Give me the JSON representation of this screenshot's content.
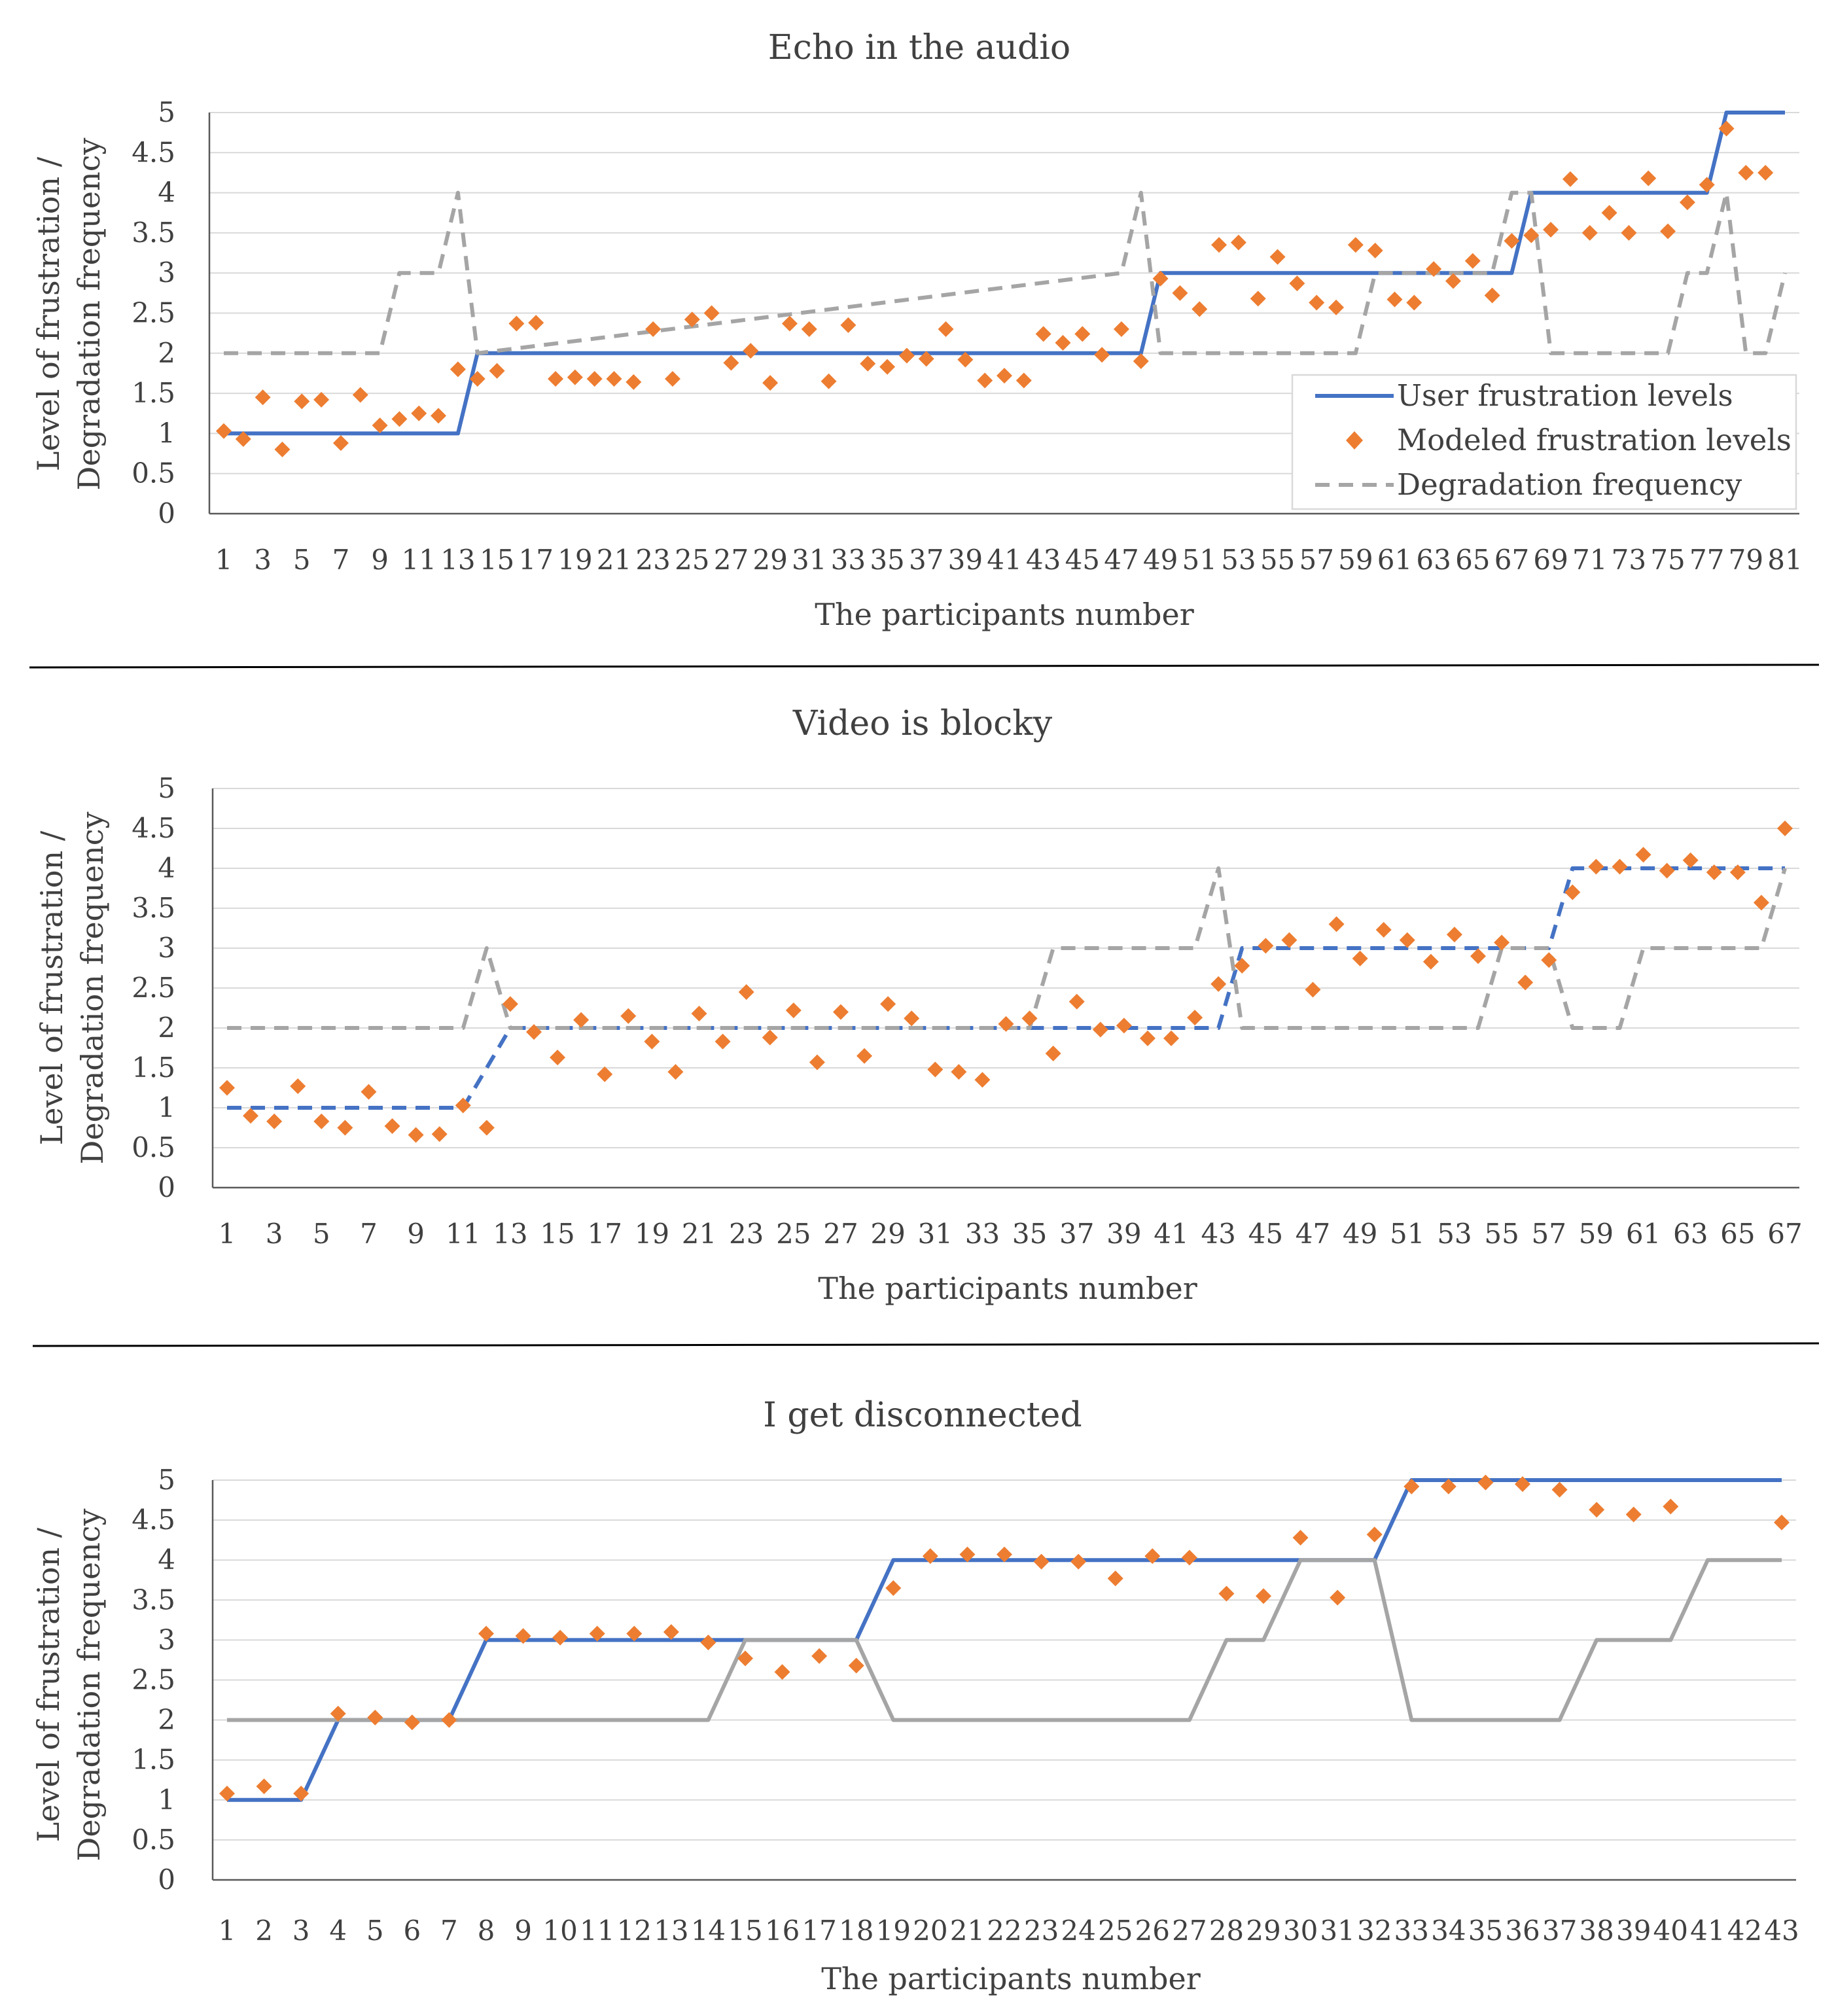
{
  "chart_data": [
    {
      "type": "line",
      "title": "Echo in the audio",
      "xlabel": "The participants number",
      "ylabel_lines": [
        "Level of frustration /",
        "Degradation frequency"
      ],
      "x_tick_labels": [
        "1",
        "3",
        "5",
        "7",
        "9",
        "11",
        "13",
        "15",
        "17",
        "19",
        "21",
        "23",
        "25",
        "27",
        "29",
        "31",
        "33",
        "35",
        "37",
        "39",
        "41",
        "43",
        "45",
        "47",
        "49",
        "51",
        "53",
        "55",
        "57",
        "59",
        "61",
        "63",
        "65",
        "67",
        "69",
        "71",
        "73",
        "75",
        "77",
        "79",
        "81"
      ],
      "y_tick_labels": [
        "0",
        "0.5",
        "1",
        "1.5",
        "2",
        "2.5",
        "3",
        "3.5",
        "4",
        "4.5",
        "5"
      ],
      "ylim": [
        0,
        5
      ],
      "xlim": [
        1,
        81
      ],
      "grid": true,
      "legend": "right-inside",
      "series": [
        {
          "name": "User frustration levels",
          "kind": "line",
          "dash": "solid",
          "color": "#4472c4",
          "x": [
            1,
            13,
            14,
            48,
            49,
            67,
            68,
            77,
            78,
            81
          ],
          "values": [
            1,
            1,
            2,
            2,
            3,
            3,
            4,
            4,
            5,
            5
          ]
        },
        {
          "name": "Modeled frustration levels",
          "kind": "scatter",
          "color": "#ed7d31",
          "x": [
            1,
            2,
            3,
            4,
            5,
            6,
            7,
            8,
            9,
            10,
            11,
            12,
            13,
            14,
            15,
            16,
            17,
            18,
            19,
            20,
            21,
            22,
            23,
            24,
            25,
            26,
            27,
            28,
            29,
            30,
            31,
            32,
            33,
            34,
            35,
            36,
            37,
            38,
            39,
            40,
            41,
            42,
            43,
            44,
            45,
            46,
            47,
            48,
            49,
            50,
            51,
            52,
            53,
            54,
            55,
            56,
            57,
            58,
            59,
            60,
            61,
            62,
            63,
            64,
            65,
            66,
            67,
            68,
            69,
            70,
            71,
            72,
            73,
            74,
            75,
            76,
            77,
            78,
            79,
            80
          ],
          "values": [
            1.03,
            0.93,
            1.45,
            0.8,
            1.4,
            1.42,
            0.88,
            1.48,
            1.1,
            1.18,
            1.25,
            1.22,
            1.8,
            1.68,
            1.78,
            2.37,
            2.38,
            1.68,
            1.7,
            1.68,
            1.68,
            1.64,
            2.3,
            1.68,
            2.42,
            2.5,
            1.88,
            2.03,
            1.63,
            2.37,
            2.3,
            1.65,
            2.35,
            1.87,
            1.83,
            1.97,
            1.93,
            2.3,
            1.92,
            1.66,
            1.72,
            1.66,
            2.24,
            2.13,
            2.24,
            1.98,
            2.3,
            1.9,
            2.93,
            2.75,
            2.55,
            3.35,
            3.38,
            2.68,
            3.2,
            2.87,
            2.63,
            2.57,
            3.35,
            3.28,
            2.67,
            2.63,
            3.05,
            2.9,
            3.15,
            2.72,
            3.4,
            3.47,
            3.54,
            4.17,
            3.5,
            3.75,
            3.5,
            4.18,
            3.52,
            3.88,
            4.1,
            4.8,
            4.25,
            4.25
          ]
        },
        {
          "name": "Degradation frequency",
          "kind": "line",
          "dash": "dashed",
          "color": "#a5a5a5",
          "x": [
            1,
            9,
            10,
            12,
            13,
            14,
            47,
            48,
            49,
            59,
            60,
            66,
            67,
            68,
            69,
            75,
            76,
            77,
            78,
            79,
            80,
            81
          ],
          "values": [
            2,
            2,
            3,
            3,
            4,
            2,
            3,
            4,
            2,
            2,
            3,
            3,
            4,
            4,
            2,
            2,
            3,
            3,
            4,
            2,
            2,
            3
          ]
        }
      ]
    },
    {
      "type": "line",
      "title": "Video is blocky",
      "xlabel": "The participants number",
      "ylabel_lines": [
        "Level of frustration /",
        "Degradation frequency"
      ],
      "x_tick_labels": [
        "1",
        "3",
        "5",
        "7",
        "9",
        "11",
        "13",
        "15",
        "17",
        "19",
        "21",
        "23",
        "25",
        "27",
        "29",
        "31",
        "33",
        "35",
        "37",
        "39",
        "41",
        "43",
        "45",
        "47",
        "49",
        "51",
        "53",
        "55",
        "57",
        "59",
        "61",
        "63",
        "65",
        "67"
      ],
      "y_tick_labels": [
        "0",
        "0.5",
        "1",
        "1.5",
        "2",
        "2.5",
        "3",
        "3.5",
        "4",
        "4.5",
        "5"
      ],
      "ylim": [
        0,
        5
      ],
      "xlim": [
        1,
        67
      ],
      "grid": true,
      "series": [
        {
          "kind": "line",
          "dash": "dashed",
          "color": "#4472c4",
          "x": [
            1,
            11,
            13,
            43,
            44,
            57,
            58,
            67
          ],
          "values": [
            1,
            1,
            2,
            2,
            3,
            3,
            4,
            4
          ]
        },
        {
          "kind": "scatter",
          "color": "#ed7d31",
          "x": [
            1,
            2,
            3,
            4,
            5,
            6,
            7,
            8,
            9,
            10,
            11,
            12,
            13,
            14,
            15,
            16,
            17,
            18,
            19,
            20,
            21,
            22,
            23,
            24,
            25,
            26,
            27,
            28,
            29,
            30,
            31,
            32,
            33,
            34,
            35,
            36,
            37,
            38,
            39,
            40,
            41,
            42,
            43,
            44,
            45,
            46,
            47,
            48,
            49,
            50,
            51,
            52,
            53,
            54,
            55,
            56,
            57,
            58,
            59,
            60,
            61,
            62,
            63,
            64,
            65,
            66,
            67
          ],
          "values": [
            1.25,
            0.9,
            0.83,
            1.27,
            0.83,
            0.75,
            1.2,
            0.77,
            0.66,
            0.67,
            1.03,
            0.75,
            2.3,
            1.95,
            1.63,
            2.1,
            1.42,
            2.15,
            1.83,
            1.45,
            2.18,
            1.83,
            2.45,
            1.88,
            2.22,
            1.57,
            2.2,
            1.65,
            2.3,
            2.12,
            1.48,
            1.45,
            1.35,
            2.05,
            2.12,
            1.68,
            2.33,
            1.98,
            2.03,
            1.87,
            1.87,
            2.13,
            2.55,
            2.78,
            3.03,
            3.1,
            2.48,
            3.3,
            2.87,
            3.23,
            3.1,
            2.83,
            3.17,
            2.9,
            3.07,
            2.57,
            2.85,
            3.7,
            4.02,
            4.02,
            4.17,
            3.97,
            4.1,
            3.95,
            3.95,
            3.57,
            4.5
          ]
        },
        {
          "kind": "line",
          "dash": "dashed",
          "color": "#a5a5a5",
          "x": [
            1,
            11,
            12,
            13,
            35,
            36,
            42,
            43,
            44,
            54,
            55,
            57,
            58,
            60,
            61,
            66,
            67
          ],
          "values": [
            2,
            2,
            3,
            2,
            2,
            3,
            3,
            4,
            2,
            2,
            3,
            3,
            2,
            2,
            3,
            3,
            4
          ]
        }
      ]
    },
    {
      "type": "line",
      "title": "I get disconnected",
      "xlabel": "The participants number",
      "ylabel_lines": [
        "Level of frustration /",
        "Degradation frequency"
      ],
      "x_tick_labels": [
        "1",
        "2",
        "3",
        "4",
        "5",
        "6",
        "7",
        "8",
        "9",
        "10",
        "11",
        "12",
        "13",
        "14",
        "15",
        "16",
        "17",
        "18",
        "19",
        "20",
        "21",
        "22",
        "23",
        "24",
        "25",
        "26",
        "27",
        "28",
        "29",
        "30",
        "31",
        "32",
        "33",
        "34",
        "35",
        "36",
        "37",
        "38",
        "39",
        "40",
        "41",
        "42",
        "43"
      ],
      "y_tick_labels": [
        "0",
        "0.5",
        "1",
        "1.5",
        "2",
        "2.5",
        "3",
        "3.5",
        "4",
        "4.5",
        "5"
      ],
      "ylim": [
        0,
        5
      ],
      "xlim": [
        1,
        43
      ],
      "grid": true,
      "series": [
        {
          "kind": "line",
          "dash": "solid",
          "color": "#4472c4",
          "x": [
            1,
            3,
            4,
            7,
            8,
            18,
            19,
            32,
            33,
            43
          ],
          "values": [
            1,
            1,
            2,
            2,
            3,
            3,
            4,
            4,
            5,
            5
          ]
        },
        {
          "kind": "scatter",
          "color": "#ed7d31",
          "x": [
            1,
            2,
            3,
            4,
            5,
            6,
            7,
            8,
            9,
            10,
            11,
            12,
            13,
            14,
            15,
            16,
            17,
            18,
            19,
            20,
            21,
            22,
            23,
            24,
            25,
            26,
            27,
            28,
            29,
            30,
            31,
            32,
            33,
            34,
            35,
            36,
            37,
            38,
            39,
            40,
            43
          ],
          "values": [
            1.08,
            1.17,
            1.08,
            2.08,
            2.03,
            1.97,
            2.0,
            3.08,
            3.05,
            3.03,
            3.08,
            3.08,
            3.1,
            2.97,
            2.77,
            2.6,
            2.8,
            2.68,
            3.65,
            4.05,
            4.07,
            4.07,
            3.98,
            3.98,
            3.77,
            4.05,
            4.03,
            3.58,
            3.55,
            4.28,
            3.53,
            4.32,
            4.92,
            4.92,
            4.97,
            4.95,
            4.88,
            4.63,
            4.57,
            4.67,
            4.47
          ]
        },
        {
          "kind": "line",
          "dash": "solid",
          "color": "#a5a5a5",
          "x": [
            1,
            14,
            15,
            18,
            19,
            27,
            28,
            29,
            30,
            32,
            33,
            37,
            38,
            40,
            41,
            43
          ],
          "values": [
            2,
            2,
            3,
            3,
            2,
            2,
            3,
            3,
            4,
            4,
            2,
            2,
            3,
            3,
            4,
            4
          ]
        }
      ]
    }
  ]
}
